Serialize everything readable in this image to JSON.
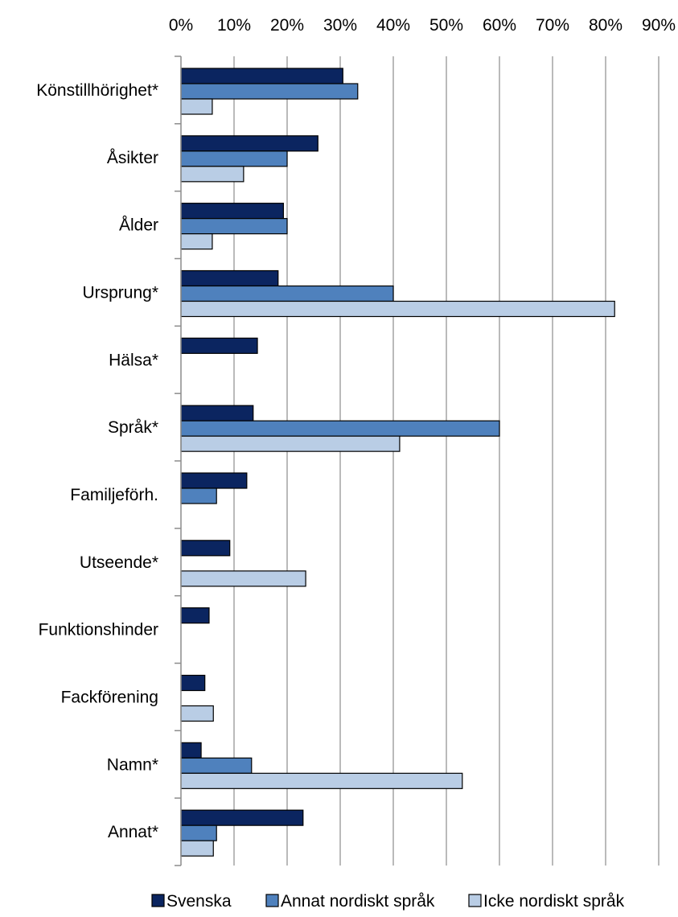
{
  "chart_data": {
    "type": "bar",
    "orientation": "horizontal",
    "title": "",
    "xlabel": "",
    "ylabel": "",
    "xlim": [
      0,
      90
    ],
    "x_ticks": [
      0,
      10,
      20,
      30,
      40,
      50,
      60,
      70,
      80,
      90
    ],
    "x_tick_labels": [
      "0%",
      "10%",
      "20%",
      "30%",
      "40%",
      "50%",
      "60%",
      "70%",
      "80%",
      "90%"
    ],
    "x_axis_position": "top",
    "grid": true,
    "legend_position": "bottom",
    "categories": [
      "Könstillhörighet*",
      "Åsikter",
      "Ålder",
      "Ursprung*",
      "Hälsa*",
      "Språk*",
      "Familjeförh.",
      "Utseende*",
      "Funktionshinder",
      "Fackförening",
      "Namn*",
      "Annat*"
    ],
    "series": [
      {
        "name": "Svenska",
        "color": "#0b2560",
        "values": [
          30.5,
          25.8,
          19.3,
          18.3,
          14.4,
          13.6,
          12.4,
          9.2,
          5.3,
          4.5,
          3.8,
          23.0
        ]
      },
      {
        "name": "Annat nordiskt språk",
        "color": "#4f81bd",
        "values": [
          33.3,
          20.0,
          20.0,
          40.0,
          0,
          60.0,
          6.7,
          0,
          0,
          0,
          13.3,
          6.7
        ]
      },
      {
        "name": "Icke nordiskt språk",
        "color": "#b9cde5",
        "values": [
          5.9,
          11.8,
          5.9,
          81.7,
          0,
          41.2,
          0,
          23.5,
          0,
          6.1,
          53.0,
          6.1
        ]
      }
    ]
  }
}
